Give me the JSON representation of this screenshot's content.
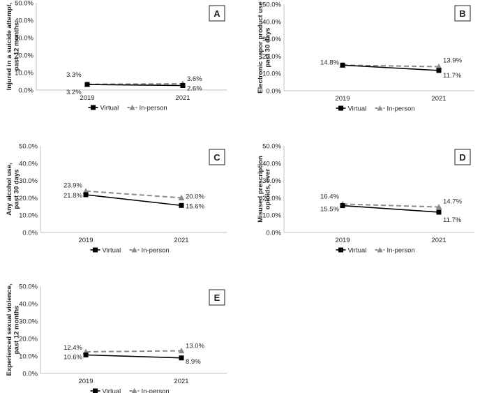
{
  "chart_data": [
    {
      "type": "line",
      "panel": "A",
      "ylabel": [
        "Injured in a suicide attempt,",
        "past 12 months"
      ],
      "categories": [
        "2019",
        "2021"
      ],
      "ylim": [
        0,
        50
      ],
      "yticks": [
        "0.0%",
        "10.0%",
        "20.0%",
        "30.0%",
        "40.0%",
        "50.0%"
      ],
      "series": [
        {
          "name": "Virtual",
          "values": [
            3.2,
            2.6
          ],
          "labels": [
            "3.2%",
            "2.6%"
          ],
          "color": "#000000",
          "dash": "solid",
          "marker": "square"
        },
        {
          "name": "In-person",
          "values": [
            3.3,
            3.6
          ],
          "labels": [
            "3.3%",
            "3.6%"
          ],
          "color": "#8c8c8c",
          "dash": "dashed",
          "marker": "triangle"
        }
      ]
    },
    {
      "type": "line",
      "panel": "B",
      "ylabel": [
        "Electronic vapor product use",
        "past 30 days"
      ],
      "categories": [
        "2019",
        "2021"
      ],
      "ylim": [
        0,
        50
      ],
      "yticks": [
        "0.0%",
        "10.0%",
        "20.0%",
        "30.0%",
        "40.0%",
        "50.0%"
      ],
      "series": [
        {
          "name": "Virtual",
          "values": [
            14.8,
            11.7
          ],
          "labels": [
            "14.8%",
            "11.7%"
          ],
          "color": "#000000",
          "dash": "solid",
          "marker": "square"
        },
        {
          "name": "In-person",
          "values": [
            14.8,
            13.9
          ],
          "labels": [
            "",
            "13.9%"
          ],
          "color": "#8c8c8c",
          "dash": "dashed",
          "marker": "triangle"
        }
      ]
    },
    {
      "type": "line",
      "panel": "C",
      "ylabel": [
        "Any alcohol use,",
        "past 30 days"
      ],
      "categories": [
        "2019",
        "2021"
      ],
      "ylim": [
        0,
        50
      ],
      "yticks": [
        "0.0%",
        "10.0%",
        "20.0%",
        "30.0%",
        "40.0%",
        "50.0%"
      ],
      "series": [
        {
          "name": "Virtual",
          "values": [
            21.8,
            15.6
          ],
          "labels": [
            "21.8%",
            "15.6%"
          ],
          "color": "#000000",
          "dash": "solid",
          "marker": "square"
        },
        {
          "name": "In-person",
          "values": [
            23.9,
            20.0
          ],
          "labels": [
            "23.9%",
            "20.0%"
          ],
          "color": "#8c8c8c",
          "dash": "dashed",
          "marker": "triangle"
        }
      ]
    },
    {
      "type": "line",
      "panel": "D",
      "ylabel": [
        "Misused prescription",
        "opioids, ever"
      ],
      "categories": [
        "2019",
        "2021"
      ],
      "ylim": [
        0,
        50
      ],
      "yticks": [
        "0.0%",
        "10.0%",
        "20.0%",
        "30.0%",
        "40.0%",
        "50.0%"
      ],
      "series": [
        {
          "name": "Virtual",
          "values": [
            15.5,
            11.7
          ],
          "labels": [
            "15.5%",
            "11.7%"
          ],
          "color": "#000000",
          "dash": "solid",
          "marker": "square"
        },
        {
          "name": "In-person",
          "values": [
            16.4,
            14.7
          ],
          "labels": [
            "16.4%",
            "14.7%"
          ],
          "color": "#8c8c8c",
          "dash": "dashed",
          "marker": "triangle"
        }
      ]
    },
    {
      "type": "line",
      "panel": "E",
      "ylabel": [
        "Experienced sexual violence,",
        "past 12 months"
      ],
      "categories": [
        "2019",
        "2021"
      ],
      "ylim": [
        0,
        50
      ],
      "yticks": [
        "0.0%",
        "10.0%",
        "20.0%",
        "30.0%",
        "40.0%",
        "50.0%"
      ],
      "series": [
        {
          "name": "Virtual",
          "values": [
            10.6,
            8.9
          ],
          "labels": [
            "10.6%",
            "8.9%"
          ],
          "color": "#000000",
          "dash": "solid",
          "marker": "square"
        },
        {
          "name": "In-person",
          "values": [
            12.4,
            13.0
          ],
          "labels": [
            "12.4%",
            "13.0%"
          ],
          "color": "#8c8c8c",
          "dash": "dashed",
          "marker": "triangle"
        }
      ]
    }
  ]
}
